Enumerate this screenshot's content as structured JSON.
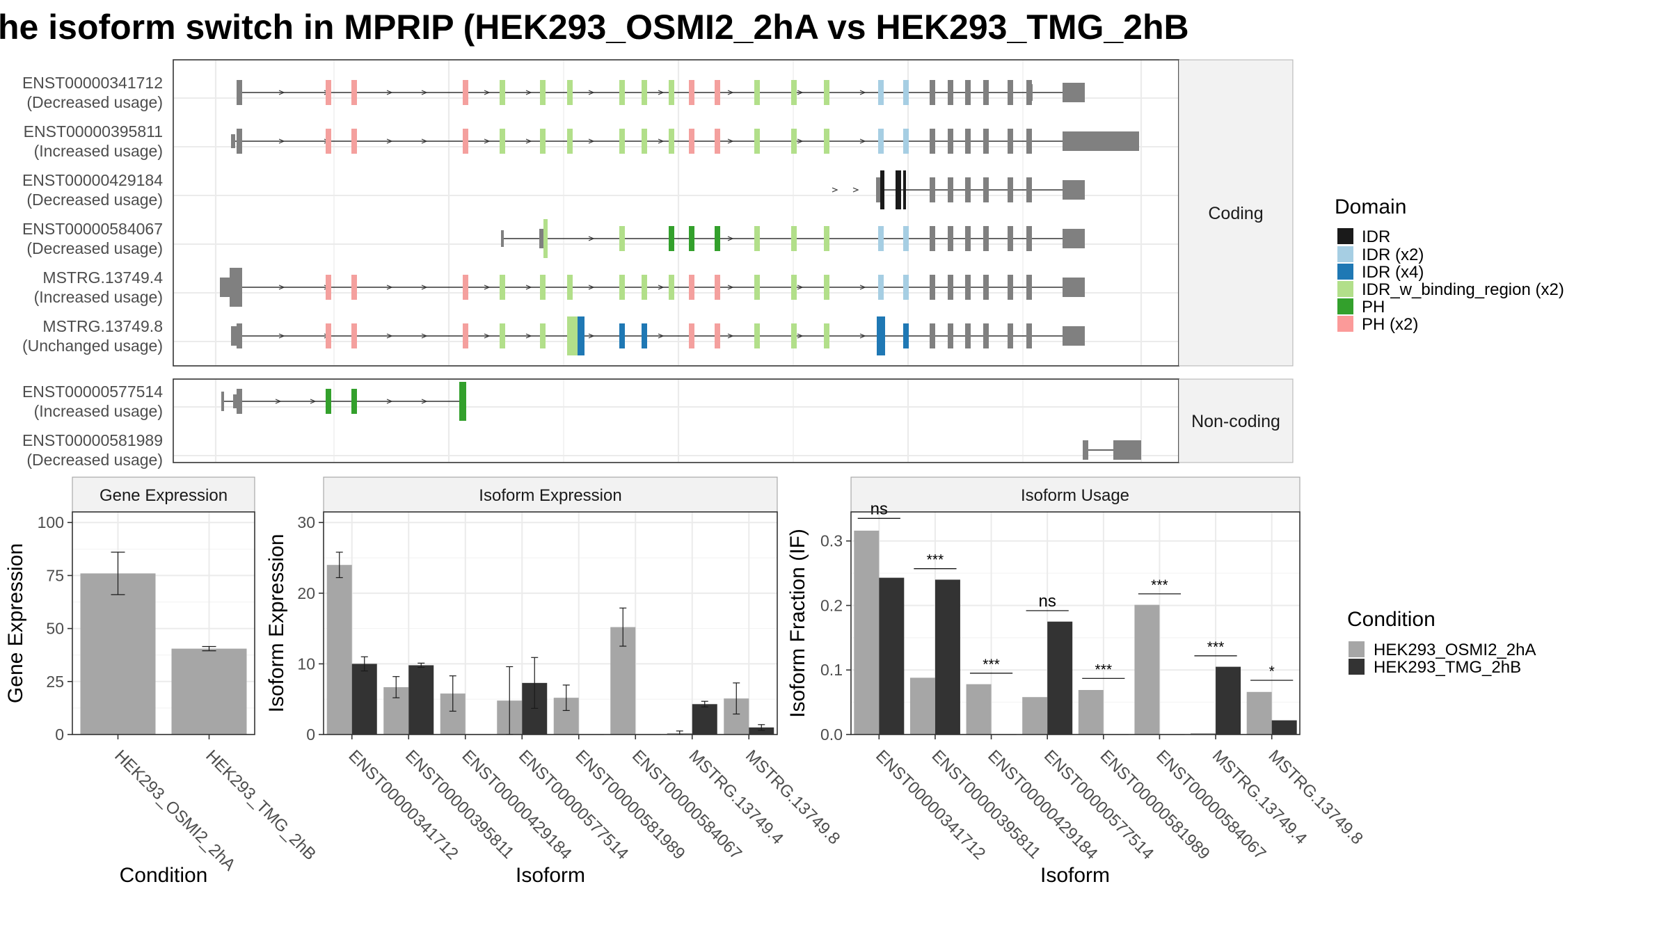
{
  "title": "he isoform switch in MPRIP (HEK293_OSMI2_2hA vs HEK293_TMG_2hB",
  "structure": {
    "coding_label": "Coding",
    "noncoding_label": "Non-coding",
    "coding": [
      {
        "id": "ENST00000341712",
        "note": "(Decreased usage)"
      },
      {
        "id": "ENST00000395811",
        "note": "(Increased usage)"
      },
      {
        "id": "ENST00000429184",
        "note": "(Decreased usage)"
      },
      {
        "id": "ENST00000584067",
        "note": "(Decreased usage)"
      },
      {
        "id": "MSTRG.13749.4",
        "note": "(Increased usage)"
      },
      {
        "id": "MSTRG.13749.8",
        "note": "(Unchanged usage)"
      }
    ],
    "noncoding": [
      {
        "id": "ENST00000577514",
        "note": "(Increased usage)"
      },
      {
        "id": "ENST00000581989",
        "note": "(Decreased usage)"
      }
    ]
  },
  "domain_legend": {
    "title": "Domain",
    "items": [
      {
        "label": "IDR",
        "color": "#1a1a1a"
      },
      {
        "label": "IDR (x2)",
        "color": "#a6cee3"
      },
      {
        "label": "IDR (x4)",
        "color": "#1f78b4"
      },
      {
        "label": "IDR_w_binding_region (x2)",
        "color": "#b2df8a"
      },
      {
        "label": "PH",
        "color": "#33a02c"
      },
      {
        "label": "PH (x2)",
        "color": "#fb9a99"
      }
    ]
  },
  "condition_legend": {
    "title": "Condition",
    "items": [
      {
        "label": "HEK293_OSMI2_2hA",
        "color": "#a6a6a6"
      },
      {
        "label": "HEK293_TMG_2hB",
        "color": "#333333"
      }
    ]
  },
  "chart_data": [
    {
      "type": "bar",
      "title": "Gene Expression",
      "xlabel": "Condition",
      "ylabel": "Gene Expression",
      "categories": [
        "HEK293_OSMI2_2hA",
        "HEK293_TMG_2hB"
      ],
      "values": [
        76,
        40.5
      ],
      "errors": [
        10,
        1
      ],
      "ylim": [
        0,
        105
      ],
      "yticks": [
        0,
        25,
        50,
        75,
        100
      ]
    },
    {
      "type": "bar",
      "title": "Isoform Expression",
      "xlabel": "Isoform",
      "ylabel": "Isoform Expression",
      "categories": [
        "ENST00000341712",
        "ENST00000395811",
        "ENST00000429184",
        "ENST00000577514",
        "ENST00000581989",
        "ENST00000584067",
        "MSTRG.13749.4",
        "MSTRG.13749.8"
      ],
      "series": [
        {
          "name": "HEK293_OSMI2_2hA",
          "values": [
            24,
            6.7,
            5.8,
            4.8,
            5.2,
            15.2,
            0.2,
            5.1
          ],
          "errors": [
            1.8,
            1.5,
            2.5,
            4.8,
            1.8,
            2.7,
            0.3,
            2.2
          ]
        },
        {
          "name": "HEK293_TMG_2hB",
          "values": [
            10,
            9.8,
            0,
            7.3,
            0,
            0,
            4.3,
            1
          ],
          "errors": [
            1,
            0.3,
            0,
            3.6,
            0,
            0,
            0.4,
            0.4
          ]
        }
      ],
      "ylim": [
        0,
        31.5
      ],
      "yticks": [
        0,
        10,
        20,
        30
      ]
    },
    {
      "type": "bar",
      "title": "Isoform Usage",
      "xlabel": "Isoform",
      "ylabel": "Isoform Fraction (IF)",
      "categories": [
        "ENST00000341712",
        "ENST00000395811",
        "ENST00000429184",
        "ENST00000577514",
        "ENST00000581989",
        "ENST00000584067",
        "MSTRG.13749.4",
        "MSTRG.13749.8"
      ],
      "series": [
        {
          "name": "HEK293_OSMI2_2hA",
          "values": [
            0.316,
            0.088,
            0.078,
            0.058,
            0.069,
            0.201,
            0.002,
            0.066
          ]
        },
        {
          "name": "HEK293_TMG_2hB",
          "values": [
            0.243,
            0.24,
            0,
            0.175,
            0,
            0,
            0.105,
            0.022
          ]
        }
      ],
      "significance": [
        "ns",
        "***",
        "***",
        "ns",
        "***",
        "***",
        "***",
        "*"
      ],
      "sig_level": [
        0.335,
        0.257,
        0.095,
        0.192,
        0.087,
        0.218,
        0.122,
        0.084
      ],
      "ylim": [
        0,
        0.345
      ],
      "yticks": [
        0.0,
        0.1,
        0.2,
        0.3
      ],
      "ytick_labels": [
        "0.0",
        "0.1",
        "0.2",
        "0.3"
      ]
    }
  ]
}
